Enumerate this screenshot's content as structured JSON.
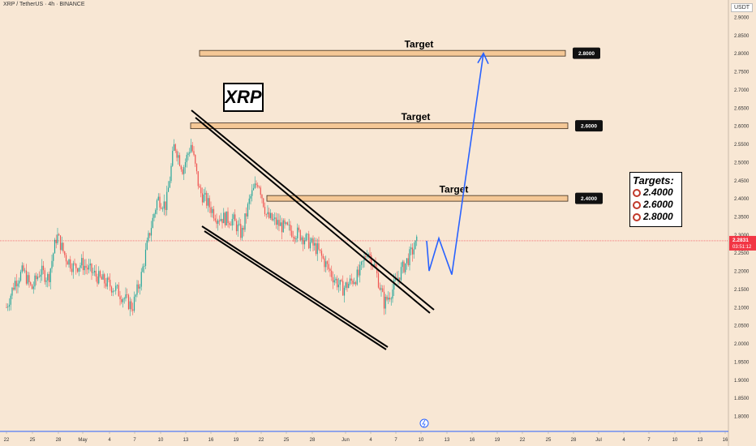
{
  "header": {
    "title": "XRP / TetherUS · 4h · BINANCE",
    "currency": "USDT"
  },
  "labels": {
    "symbol_box": "XRP",
    "targets_heading": "Targets:",
    "targets": [
      "2.4000",
      "2.6000",
      "2.8000"
    ]
  },
  "price_tag": {
    "price": "2.2831",
    "countdown": "03:51:12",
    "color": "#f23645"
  },
  "colors": {
    "background": "#f8e7d4",
    "bull": "#26a69a",
    "bear": "#ef5350",
    "zone_fill": "#f5c896",
    "projection": "#2962ff"
  },
  "chart_data": {
    "type": "candlestick",
    "ylim": [
      1.78,
      2.92
    ],
    "y_ticks": [
      "1.8000",
      "1.8500",
      "1.9000",
      "1.9500",
      "2.0000",
      "2.0500",
      "2.1000",
      "2.1500",
      "2.2000",
      "2.2500",
      "2.3000",
      "2.3500",
      "2.4000",
      "2.4500",
      "2.5000",
      "2.5500",
      "2.6000",
      "2.6500",
      "2.7000",
      "2.7500",
      "2.8000",
      "2.8500",
      "2.9000"
    ],
    "x_ticks": [
      "22",
      "25",
      "28",
      "May",
      "4",
      "7",
      "10",
      "13",
      "16",
      "19",
      "22",
      "25",
      "28",
      "Jun",
      "4",
      "7",
      "10",
      "13",
      "16",
      "19",
      "22",
      "25",
      "28",
      "Jul",
      "4",
      "7",
      "10",
      "13",
      "16"
    ],
    "price_path": [
      [
        "Apr 22",
        2.1
      ],
      [
        "Apr 23",
        2.17
      ],
      [
        "Apr 24",
        2.2
      ],
      [
        "Apr 25",
        2.15
      ],
      [
        "Apr 26",
        2.2
      ],
      [
        "Apr 27",
        2.18
      ],
      [
        "Apr 28",
        2.3
      ],
      [
        "Apr 29",
        2.24
      ],
      [
        "Apr 30",
        2.21
      ],
      [
        "May 1",
        2.22
      ],
      [
        "May 3",
        2.18
      ],
      [
        "May 5",
        2.15
      ],
      [
        "May 7",
        2.1
      ],
      [
        "May 8",
        2.18
      ],
      [
        "May 9",
        2.3
      ],
      [
        "May 10",
        2.4
      ],
      [
        "May 11",
        2.38
      ],
      [
        "May 12",
        2.55
      ],
      [
        "May 13",
        2.48
      ],
      [
        "May 14",
        2.55
      ],
      [
        "May 15",
        2.42
      ],
      [
        "May 17",
        2.35
      ],
      [
        "May 19",
        2.34
      ],
      [
        "May 20",
        2.3
      ],
      [
        "May 21",
        2.4
      ],
      [
        "May 22",
        2.45
      ],
      [
        "May 23",
        2.35
      ],
      [
        "May 25",
        2.32
      ],
      [
        "May 27",
        2.3
      ],
      [
        "May 29",
        2.26
      ],
      [
        "May 31",
        2.18
      ],
      [
        "Jun 1",
        2.15
      ],
      [
        "Jun 3",
        2.19
      ],
      [
        "Jun 4",
        2.26
      ],
      [
        "Jun 5",
        2.2
      ],
      [
        "Jun 6",
        2.11
      ],
      [
        "Jun 7",
        2.15
      ],
      [
        "Jun 8",
        2.2
      ],
      [
        "Jun 9",
        2.24
      ],
      [
        "Jun 10",
        2.283
      ]
    ],
    "levels": [
      {
        "label": "Target",
        "price": 2.4,
        "tag": "2.4000"
      },
      {
        "label": "Target",
        "price": 2.6,
        "tag": "2.6000"
      },
      {
        "label": "Target",
        "price": 2.8,
        "tag": "2.8000"
      }
    ],
    "current_price": 2.2831,
    "projection": [
      2.283,
      2.2,
      2.29,
      2.19,
      2.8
    ],
    "channel": {
      "upper": [
        2.65,
        2.12
      ],
      "lower": [
        2.33,
        2.02
      ]
    }
  }
}
